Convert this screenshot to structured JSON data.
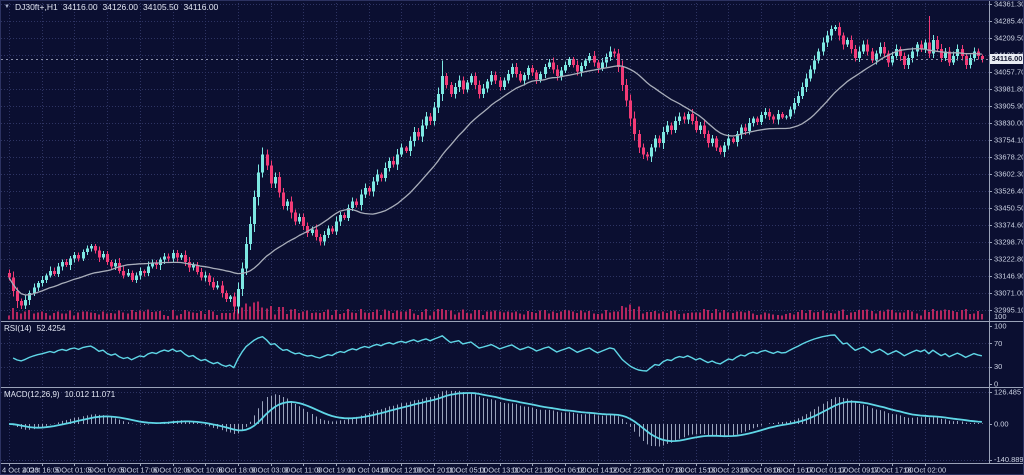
{
  "colors": {
    "background": "#0b0f31",
    "grid": "#2e3463",
    "bull": "#7de8e2",
    "bear": "#f23b76",
    "ma_line": "#a9aeba",
    "indicator_line": "#5fd6e6",
    "macd_histogram": "#9aa4bc",
    "volume": "#b5265e",
    "axis_text": "#ccd2e3",
    "divider": "#9aa2b8",
    "current_line": "#8d93aa",
    "badge_bg": "#e9ecf3",
    "badge_text": "#10142f"
  },
  "chart_data": {
    "type": "candlestick",
    "title": {
      "menu_icon": "▼",
      "symbol": "DJ30ft+,H1",
      "open": "34116.00",
      "high": "34126.00",
      "low": "34105.50",
      "close": "34116.00"
    },
    "price_pane": {
      "price_top": 34375,
      "price_bottom": 32946,
      "tick_values": [
        34361.3,
        34285.4,
        34209.5,
        34133.6,
        34057.7,
        33981.8,
        33905.9,
        33830.0,
        33754.1,
        33678.2,
        33602.3,
        33526.4,
        33450.5,
        33374.6,
        33298.7,
        33222.8,
        33146.9,
        33071.0,
        32995.1
      ],
      "current_price": 34116.0,
      "current_label": "34116.00",
      "volume_scale_label": "100",
      "first_open": 33160,
      "closes": [
        33140,
        33080,
        33035,
        33015,
        33040,
        33070,
        33095,
        33115,
        33130,
        33150,
        33170,
        33155,
        33190,
        33210,
        33195,
        33225,
        33240,
        33225,
        33255,
        33270,
        33280,
        33260,
        33230,
        33245,
        33210,
        33190,
        33205,
        33170,
        33150,
        33160,
        33130,
        33150,
        33170,
        33160,
        33190,
        33205,
        33195,
        33220,
        33235,
        33225,
        33250,
        33230,
        33240,
        33210,
        33185,
        33195,
        33165,
        33140,
        33150,
        33120,
        33095,
        33105,
        33070,
        33045,
        33055,
        33010,
        33090,
        33180,
        33290,
        33380,
        33500,
        33610,
        33690,
        33640,
        33560,
        33590,
        33520,
        33460,
        33480,
        33430,
        33390,
        33410,
        33370,
        33340,
        33355,
        33320,
        33300,
        33330,
        33360,
        33345,
        33390,
        33420,
        33405,
        33450,
        33480,
        33465,
        33510,
        33540,
        33525,
        33570,
        33600,
        33585,
        33630,
        33660,
        33645,
        33690,
        33720,
        33705,
        33750,
        33790,
        33770,
        33820,
        33860,
        33840,
        33900,
        33960,
        34040,
        34000,
        33960,
        33990,
        34020,
        33980,
        34010,
        34040,
        34000,
        33960,
        33985,
        34015,
        34045,
        34020,
        33990,
        34020,
        34050,
        34080,
        34050,
        34020,
        34045,
        34075,
        34055,
        34025,
        34050,
        34080,
        34100,
        34070,
        34040,
        34065,
        34090,
        34115,
        34090,
        34060,
        34085,
        34110,
        34130,
        34100,
        34075,
        34100,
        34125,
        34150,
        34140,
        34080,
        34000,
        33930,
        33850,
        33780,
        33720,
        33690,
        33680,
        33720,
        33760,
        33740,
        33790,
        33820,
        33800,
        33840,
        33860,
        33845,
        33870,
        33840,
        33800,
        33820,
        33780,
        33740,
        33760,
        33720,
        33700,
        33730,
        33760,
        33745,
        33780,
        33810,
        33795,
        33830,
        33850,
        33835,
        33865,
        33880,
        33860,
        33845,
        33870,
        33855,
        33860,
        33890,
        33920,
        33950,
        33990,
        34030,
        34070,
        34110,
        34150,
        34190,
        34220,
        34250,
        34260,
        34220,
        34180,
        34200,
        34160,
        34120,
        34150,
        34180,
        34150,
        34110,
        34140,
        34170,
        34140,
        34100,
        34130,
        34160,
        34130,
        34090,
        34120,
        34150,
        34180,
        34160,
        34190,
        34140,
        34200,
        34160,
        34120,
        34150,
        34100,
        34130,
        34160,
        34130,
        34090,
        34120,
        34150,
        34130,
        34116
      ]
    },
    "rsi_pane": {
      "label": "RSI(14)",
      "value": "52.4254",
      "period": 14,
      "tick_values": [
        100,
        70,
        30,
        0
      ],
      "level_lines": [
        70,
        30
      ]
    },
    "macd_pane": {
      "label": "MACD(12,26,9)",
      "value": "10.012 11.071",
      "fast": 12,
      "slow": 26,
      "signal": 9,
      "tick_values": [
        126.485,
        0,
        -140.889
      ],
      "tick_labels": [
        "126.485",
        "0.00",
        "-140.889"
      ]
    },
    "time_labels": [
      "4 Oct 2023",
      "4 Oct 16:00",
      "5 Oct 01:00",
      "5 Oct 09:00",
      "5 Oct 17:00",
      "6 Oct 02:00",
      "6 Oct 10:00",
      "6 Oct 18:00",
      "9 Oct 03:00",
      "9 Oct 11:00",
      "9 Oct 19:00",
      "10 Oct 04:00",
      "10 Oct 12:00",
      "10 Oct 20:00",
      "11 Oct 05:00",
      "11 Oct 13:00",
      "11 Oct 21:00",
      "12 Oct 06:00",
      "12 Oct 14:00",
      "12 Oct 22:00",
      "13 Oct 07:00",
      "13 Oct 15:00",
      "13 Oct 23:00",
      "16 Oct 08:00",
      "16 Oct 16:00",
      "17 Oct 01:00",
      "17 Oct 09:00",
      "17 Oct 17:00",
      "18 Oct 02:00"
    ],
    "bars_per_time_tick": 8,
    "ma_period": 24
  }
}
